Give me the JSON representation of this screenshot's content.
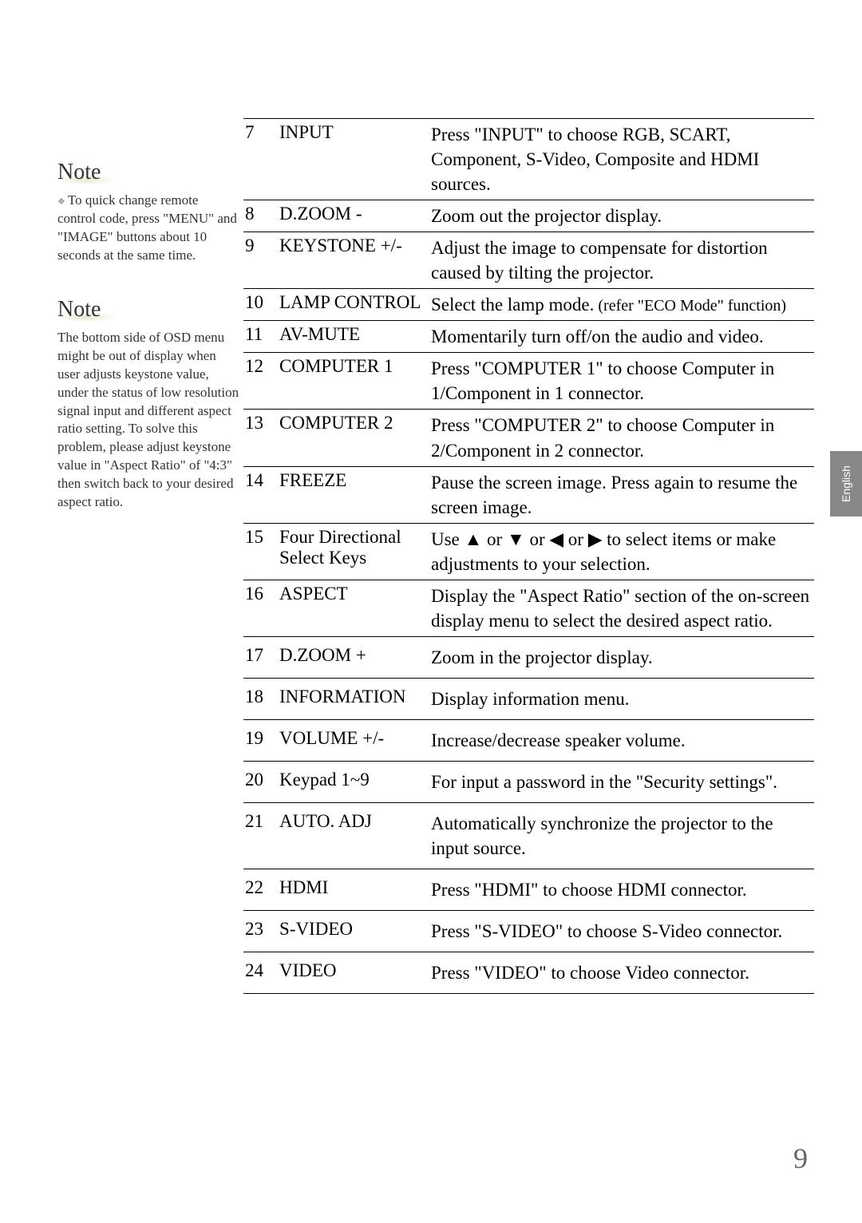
{
  "sidebar": {
    "note1": {
      "header": "Note",
      "text": "To quick change remote control code, press \"MENU\" and \"IMAGE\" buttons about 10 seconds at the same time."
    },
    "note2": {
      "header": "Note",
      "text": "The bottom side of OSD menu might be out of display when user adjusts keystone value, under the status of low resolution signal input and different aspect ratio setting. To solve this problem, please adjust keystone value in \"Aspect Ratio\" of \"4:3\" then switch back to your desired aspect ratio."
    }
  },
  "rows": [
    {
      "num": "7",
      "label": "INPUT",
      "desc": "Press \"INPUT\" to choose RGB, SCART, Component, S-Video, Composite and HDMI sources."
    },
    {
      "num": "8",
      "label": "D.ZOOM -",
      "desc": "Zoom out the projector display."
    },
    {
      "num": "9",
      "label": "KEYSTONE +/-",
      "desc": "Adjust the image to compensate for distortion caused by tilting the projector."
    },
    {
      "num": "10",
      "label": "LAMP CONTROL",
      "desc": "Select the lamp mode.",
      "refer": " (refer \"ECO Mode\" function)"
    },
    {
      "num": "11",
      "label": "AV-MUTE",
      "desc": "Momentarily turn off/on the audio and video."
    },
    {
      "num": "12",
      "label": "COMPUTER 1",
      "desc": "Press \"COMPUTER 1\" to choose Computer in 1/Component in 1 connector."
    },
    {
      "num": "13",
      "label": "COMPUTER 2",
      "desc": "Press \"COMPUTER 2\" to choose Computer in 2/Component in 2 connector."
    },
    {
      "num": "14",
      "label": "FREEZE",
      "desc": "Pause the screen image. Press again to resume the screen image."
    },
    {
      "num": "15",
      "label": "Four Directional Select Keys",
      "desc": "Use ▲ or ▼ or ◀ or ▶ to select items or make adjustments to your selection."
    },
    {
      "num": "16",
      "label": "ASPECT",
      "desc": "Display the \"Aspect Ratio\" section of the on-screen display menu to select the desired aspect ratio."
    },
    {
      "num": "17",
      "label": "D.ZOOM +",
      "desc": "Zoom in the projector display."
    },
    {
      "num": "18",
      "label": "INFORMATION",
      "desc": "Display information menu."
    },
    {
      "num": "19",
      "label": "VOLUME +/-",
      "desc": "Increase/decrease speaker volume."
    },
    {
      "num": "20",
      "label": "Keypad 1~9",
      "desc": "For input a password in the \"Security settings\"."
    },
    {
      "num": "21",
      "label": "AUTO. ADJ",
      "desc": "Automatically synchronize the projector to the input source."
    },
    {
      "num": "22",
      "label": "HDMI",
      "desc": "Press \"HDMI\" to choose HDMI connector."
    },
    {
      "num": "23",
      "label": "S-VIDEO",
      "desc": "Press \"S-VIDEO\" to choose S-Video connector."
    },
    {
      "num": "24",
      "label": "VIDEO",
      "desc": "Press \"VIDEO\" to choose Video connector."
    }
  ],
  "sideTab": "English",
  "pageNumber": "9"
}
